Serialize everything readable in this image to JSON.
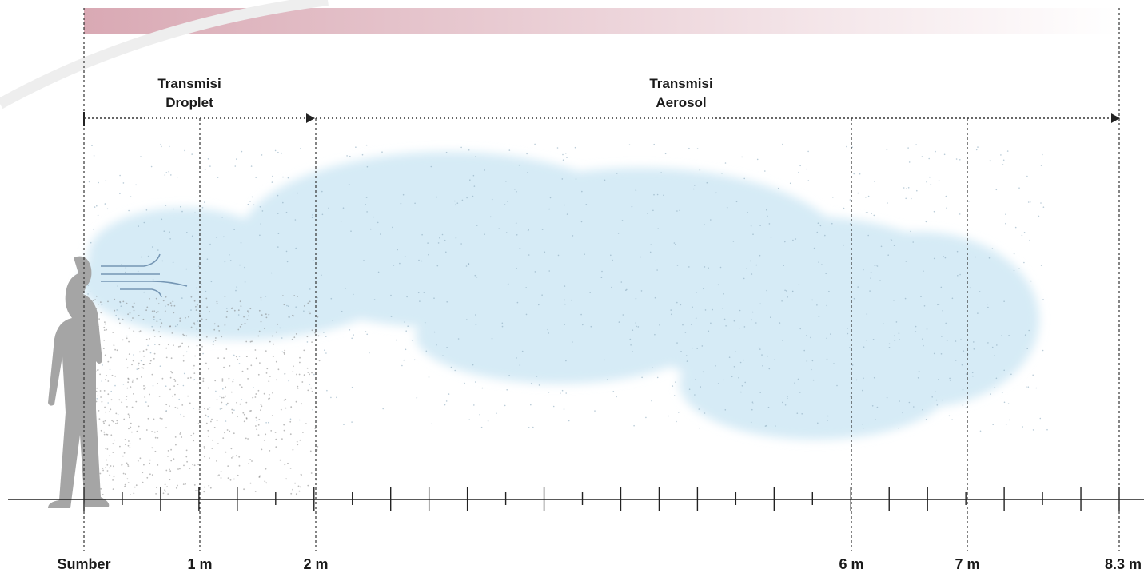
{
  "zones": [
    {
      "label_lines": [
        "Transmisi",
        "Droplet"
      ]
    },
    {
      "label_lines": [
        "Transmisi",
        "Aerosol"
      ]
    }
  ],
  "distance_labels": [
    "Sumber",
    "1  m",
    "2 m",
    "6 m",
    "7 m",
    "8.3 m"
  ]
}
